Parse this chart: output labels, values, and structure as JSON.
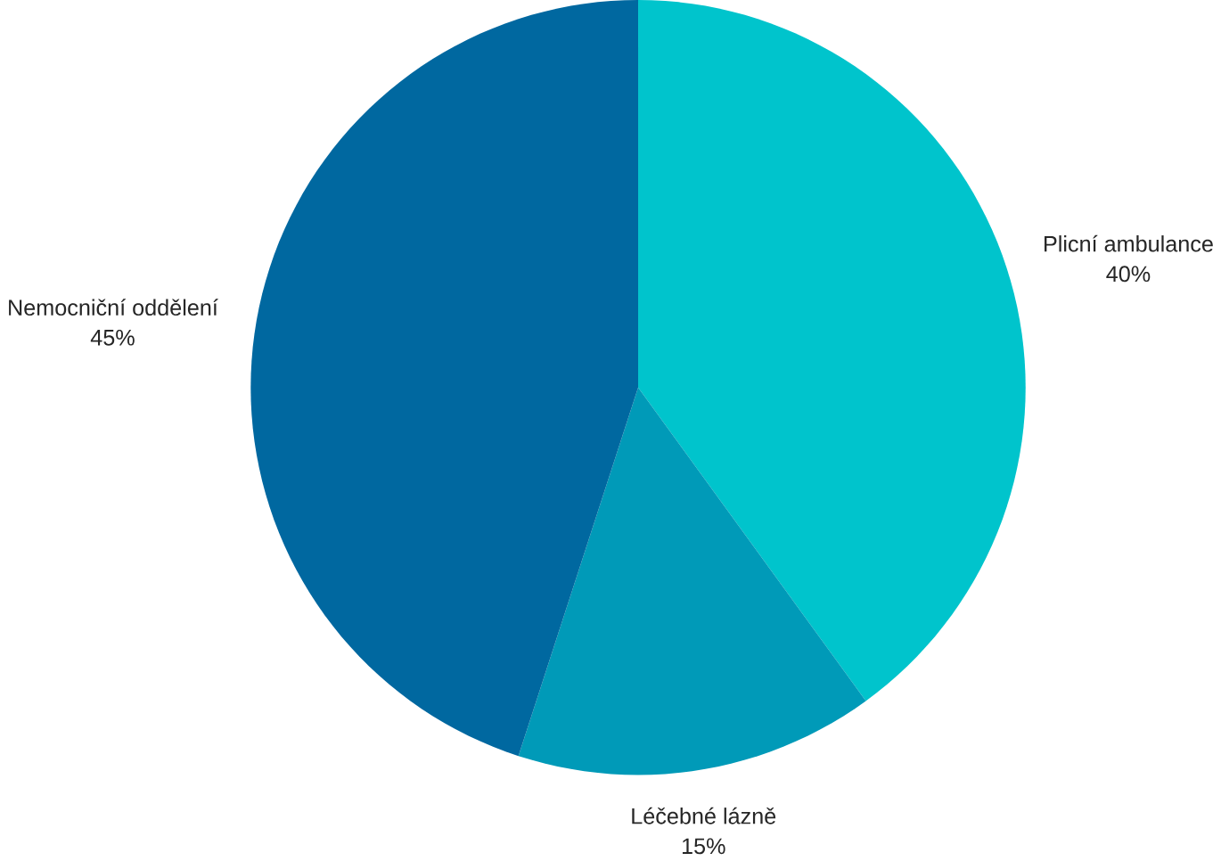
{
  "chart_data": {
    "type": "pie",
    "categories": [
      "Plicní ambulance",
      "Léčebné lázně",
      "Nemocniční oddělení"
    ],
    "values": [
      40,
      15,
      45
    ],
    "value_labels": [
      "40%",
      "15%",
      "45%"
    ],
    "colors": [
      "#00c4cc",
      "#009ab8",
      "#0068a0"
    ]
  }
}
